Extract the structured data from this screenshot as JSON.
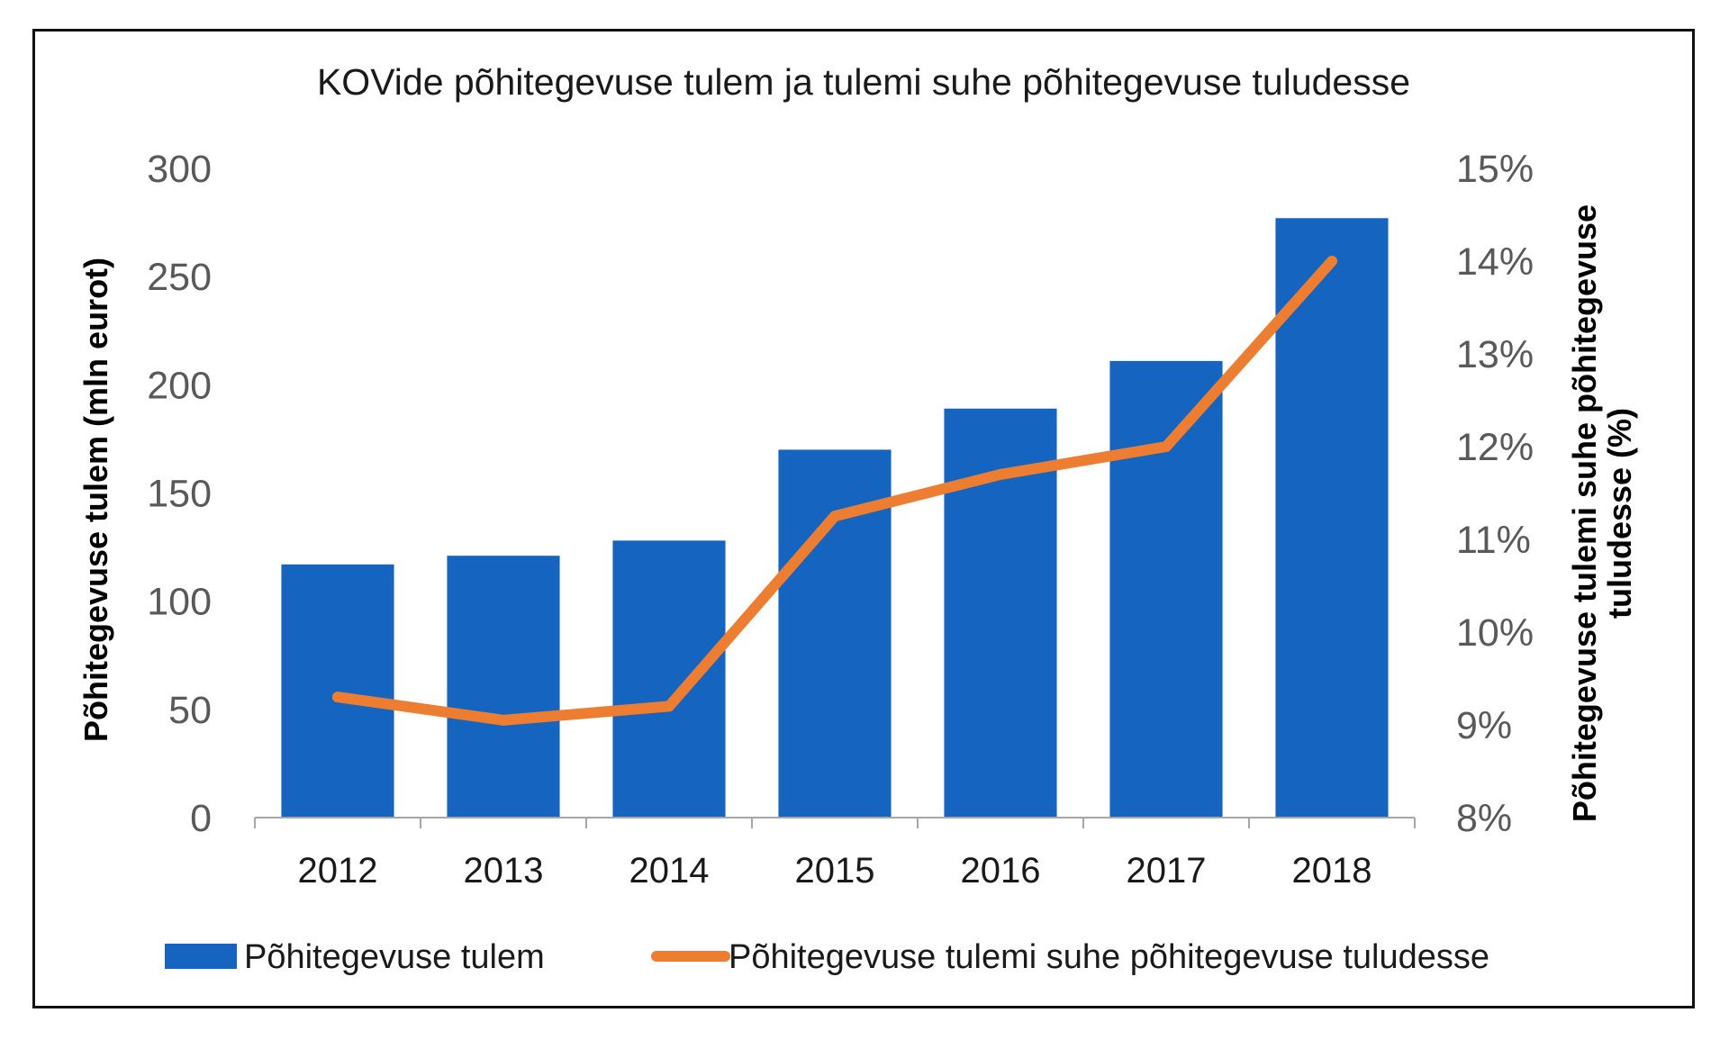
{
  "chart_data": {
    "type": "bar",
    "title": "KOVide põhitegevuse tulem ja tulemi suhe põhitegevuse tuludesse",
    "categories": [
      "2012",
      "2013",
      "2014",
      "2015",
      "2016",
      "2017",
      "2018"
    ],
    "series": [
      {
        "name": "Põhitegevuse tulem",
        "type": "bar",
        "axis": "left",
        "color": "#1565C0",
        "values": [
          117,
          121,
          128,
          170,
          189,
          211,
          277
        ]
      },
      {
        "name": "Põhitegevuse tulemi suhe põhitegevuse tuludesse",
        "type": "line",
        "axis": "right",
        "color": "#ED7D31",
        "values": [
          9.3,
          9.05,
          9.2,
          11.25,
          11.7,
          12.0,
          14.0
        ]
      }
    ],
    "ylabel": "Põhitegevuse tulem (mln eurot)",
    "ylim": [
      0,
      300
    ],
    "yticks": [
      "0",
      "50",
      "100",
      "150",
      "200",
      "250",
      "300"
    ],
    "y2label_lines": [
      "Põhitegevuse tulemi suhe põhitegevuse",
      "tuludesse (%)"
    ],
    "y2lim": [
      8,
      15
    ],
    "y2ticks": [
      "8%",
      "9%",
      "10%",
      "11%",
      "12%",
      "13%",
      "14%",
      "15%"
    ],
    "grid": false,
    "legend": "bottom"
  }
}
